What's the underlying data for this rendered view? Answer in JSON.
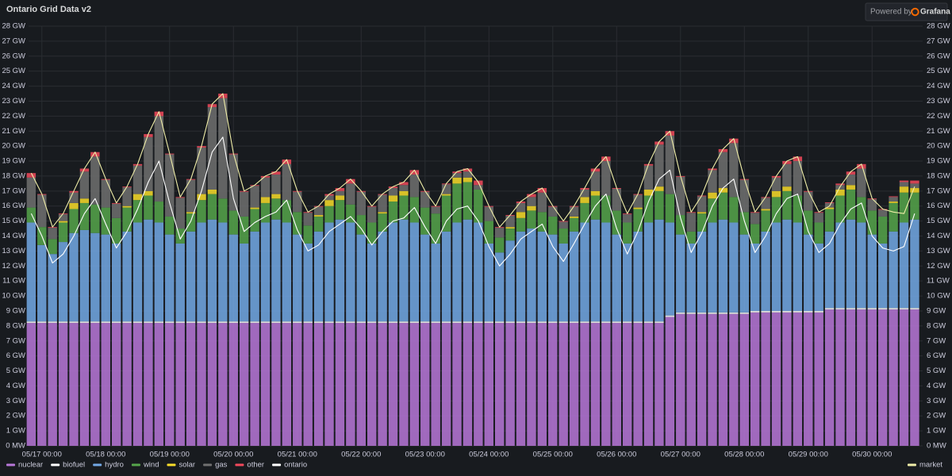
{
  "chart_data": {
    "type": "stacked_bar",
    "title": "Ontario Grid Data v2",
    "x": [
      -4,
      0,
      4,
      8,
      12,
      16,
      20,
      24,
      28,
      32,
      36,
      40,
      44,
      48,
      52,
      56,
      60,
      64,
      68,
      72,
      76,
      80,
      84,
      88,
      92,
      96,
      100,
      104,
      108,
      112,
      116,
      120,
      124,
      128,
      132,
      136,
      140,
      144,
      148,
      152,
      156,
      160,
      164,
      168,
      172,
      176,
      180,
      184,
      188,
      192,
      196,
      200,
      204,
      208,
      212,
      216,
      220,
      224,
      228,
      232,
      236,
      240,
      244,
      248,
      252,
      256,
      260,
      264,
      268,
      272,
      276,
      280,
      284,
      288,
      292,
      296,
      300,
      304,
      308,
      312,
      316,
      320,
      324,
      328
    ],
    "xlim": [
      -5,
      331
    ],
    "xticks": [
      {
        "value": 0,
        "label": "05/17 00:00"
      },
      {
        "value": 24,
        "label": "05/18 00:00"
      },
      {
        "value": 48,
        "label": "05/19 00:00"
      },
      {
        "value": 72,
        "label": "05/20 00:00"
      },
      {
        "value": 96,
        "label": "05/21 00:00"
      },
      {
        "value": 120,
        "label": "05/22 00:00"
      },
      {
        "value": 144,
        "label": "05/23 00:00"
      },
      {
        "value": 168,
        "label": "05/24 00:00"
      },
      {
        "value": 192,
        "label": "05/25 00:00"
      },
      {
        "value": 216,
        "label": "05/26 00:00"
      },
      {
        "value": 240,
        "label": "05/27 00:00"
      },
      {
        "value": 264,
        "label": "05/28 00:00"
      },
      {
        "value": 288,
        "label": "05/29 00:00"
      },
      {
        "value": 312,
        "label": "05/30 00:00"
      }
    ],
    "ylim": [
      0,
      28
    ],
    "yticks": [
      {
        "value": 0,
        "label": "0 MW"
      },
      {
        "value": 1,
        "label": "1 GW"
      },
      {
        "value": 2,
        "label": "2 GW"
      },
      {
        "value": 3,
        "label": "3 GW"
      },
      {
        "value": 4,
        "label": "4 GW"
      },
      {
        "value": 5,
        "label": "5 GW"
      },
      {
        "value": 6,
        "label": "6 GW"
      },
      {
        "value": 7,
        "label": "7 GW"
      },
      {
        "value": 8,
        "label": "8 GW"
      },
      {
        "value": 9,
        "label": "9 GW"
      },
      {
        "value": 10,
        "label": "10 GW"
      },
      {
        "value": 11,
        "label": "11 GW"
      },
      {
        "value": 12,
        "label": "12 GW"
      },
      {
        "value": 13,
        "label": "13 GW"
      },
      {
        "value": 14,
        "label": "14 GW"
      },
      {
        "value": 15,
        "label": "15 GW"
      },
      {
        "value": 16,
        "label": "16 GW"
      },
      {
        "value": 17,
        "label": "17 GW"
      },
      {
        "value": 18,
        "label": "18 GW"
      },
      {
        "value": 19,
        "label": "19 GW"
      },
      {
        "value": 20,
        "label": "20 GW"
      },
      {
        "value": 21,
        "label": "21 GW"
      },
      {
        "value": 22,
        "label": "22 GW"
      },
      {
        "value": 23,
        "label": "23 GW"
      },
      {
        "value": 24,
        "label": "24 GW"
      },
      {
        "value": 25,
        "label": "25 GW"
      },
      {
        "value": 26,
        "label": "26 GW"
      },
      {
        "value": 27,
        "label": "27 GW"
      },
      {
        "value": 28,
        "label": "28 GW"
      }
    ],
    "y2lim": [
      0,
      28
    ],
    "y2ticks": [
      {
        "value": 0,
        "label": "0 MW"
      },
      {
        "value": 1,
        "label": "1 GW"
      },
      {
        "value": 2,
        "label": "2 GW"
      },
      {
        "value": 3,
        "label": "3 GW"
      },
      {
        "value": 4,
        "label": "4 GW"
      },
      {
        "value": 5,
        "label": "5 GW"
      },
      {
        "value": 6,
        "label": "6 GW"
      },
      {
        "value": 7,
        "label": "7 GW"
      },
      {
        "value": 8,
        "label": "8 GW"
      },
      {
        "value": 9,
        "label": "9 GW"
      },
      {
        "value": 10,
        "label": "10 GW"
      },
      {
        "value": 11,
        "label": "11 GW"
      },
      {
        "value": 12,
        "label": "12 GW"
      },
      {
        "value": 13,
        "label": "13 GW"
      },
      {
        "value": 14,
        "label": "14 GW"
      },
      {
        "value": 15,
        "label": "15 GW"
      },
      {
        "value": 16,
        "label": "16 GW"
      },
      {
        "value": 17,
        "label": "17 GW"
      },
      {
        "value": 18,
        "label": "18 GW"
      },
      {
        "value": 19,
        "label": "19 GW"
      },
      {
        "value": 20,
        "label": "20 GW"
      },
      {
        "value": 21,
        "label": "21 GW"
      },
      {
        "value": 22,
        "label": "22 GW"
      },
      {
        "value": 23,
        "label": "23 GW"
      },
      {
        "value": 24,
        "label": "24 GW"
      },
      {
        "value": 25,
        "label": "25 GW"
      },
      {
        "value": 26,
        "label": "26 GW"
      },
      {
        "value": 27,
        "label": "27 GW"
      },
      {
        "value": 28,
        "label": "28 GW"
      }
    ],
    "grid": true,
    "legend": "bottom",
    "series": [
      {
        "name": "nuclear",
        "color": "#b877d9",
        "values": [
          8.2,
          8.2,
          8.2,
          8.2,
          8.2,
          8.2,
          8.2,
          8.2,
          8.2,
          8.2,
          8.2,
          8.2,
          8.2,
          8.2,
          8.2,
          8.2,
          8.2,
          8.2,
          8.2,
          8.2,
          8.2,
          8.2,
          8.2,
          8.2,
          8.2,
          8.2,
          8.2,
          8.2,
          8.2,
          8.2,
          8.2,
          8.2,
          8.2,
          8.2,
          8.2,
          8.2,
          8.2,
          8.2,
          8.2,
          8.2,
          8.2,
          8.2,
          8.2,
          8.2,
          8.2,
          8.2,
          8.2,
          8.2,
          8.2,
          8.2,
          8.2,
          8.2,
          8.2,
          8.2,
          8.2,
          8.2,
          8.2,
          8.2,
          8.2,
          8.2,
          8.6,
          8.8,
          8.8,
          8.8,
          8.8,
          8.8,
          8.8,
          8.8,
          8.9,
          8.9,
          8.9,
          8.9,
          8.9,
          8.9,
          8.9,
          9.1,
          9.1,
          9.1,
          9.1,
          9.1,
          9.1,
          9.1,
          9.1,
          9.1
        ]
      },
      {
        "name": "biofuel",
        "color": "#ffffff",
        "values": [
          0.1,
          0.1,
          0.1,
          0.1,
          0.1,
          0.1,
          0.1,
          0.1,
          0.1,
          0.1,
          0.1,
          0.1,
          0.1,
          0.1,
          0.1,
          0.1,
          0.1,
          0.1,
          0.1,
          0.1,
          0.1,
          0.1,
          0.1,
          0.1,
          0.1,
          0.1,
          0.1,
          0.1,
          0.1,
          0.1,
          0.1,
          0.1,
          0.1,
          0.1,
          0.1,
          0.1,
          0.1,
          0.1,
          0.1,
          0.1,
          0.1,
          0.1,
          0.1,
          0.1,
          0.1,
          0.1,
          0.1,
          0.1,
          0.1,
          0.1,
          0.1,
          0.1,
          0.1,
          0.1,
          0.1,
          0.1,
          0.1,
          0.1,
          0.1,
          0.1,
          0.1,
          0.1,
          0.1,
          0.1,
          0.1,
          0.1,
          0.1,
          0.1,
          0.1,
          0.1,
          0.1,
          0.1,
          0.1,
          0.1,
          0.1,
          0.1,
          0.1,
          0.1,
          0.1,
          0.1,
          0.1,
          0.1,
          0.1,
          0.1
        ]
      },
      {
        "name": "hydro",
        "color": "#73a9e6",
        "values": [
          6.6,
          5.1,
          4.5,
          5.3,
          5.9,
          6.1,
          5.9,
          5.8,
          5.2,
          6.0,
          6.6,
          6.8,
          6.6,
          5.8,
          5.2,
          6.0,
          6.6,
          6.8,
          6.6,
          5.8,
          5.2,
          6.0,
          6.6,
          6.8,
          6.6,
          5.8,
          5.2,
          6.0,
          6.6,
          6.8,
          6.6,
          5.8,
          5.2,
          6.0,
          6.6,
          6.8,
          6.6,
          5.8,
          5.2,
          6.0,
          6.6,
          6.8,
          6.6,
          5.2,
          4.6,
          5.4,
          6.0,
          6.2,
          6.0,
          5.8,
          5.2,
          6.0,
          6.6,
          6.8,
          6.6,
          5.8,
          5.2,
          6.0,
          6.6,
          6.8,
          6.2,
          5.2,
          4.6,
          5.4,
          6.0,
          6.2,
          6.0,
          5.2,
          4.5,
          5.3,
          5.9,
          6.1,
          5.9,
          5.1,
          4.5,
          5.1,
          5.7,
          5.9,
          5.7,
          4.9,
          4.3,
          5.1,
          5.7,
          5.9
        ]
      },
      {
        "name": "wind",
        "color": "#56a64b",
        "values": [
          1.0,
          1.2,
          1.0,
          1.3,
          1.6,
          1.8,
          1.9,
          1.8,
          1.7,
          1.6,
          1.5,
          1.6,
          1.4,
          1.2,
          1.0,
          1.2,
          1.5,
          1.7,
          1.6,
          1.6,
          1.8,
          1.5,
          1.3,
          1.4,
          1.5,
          1.5,
          1.2,
          1.0,
          1.1,
          1.3,
          1.2,
          1.3,
          1.4,
          1.2,
          1.4,
          1.6,
          1.7,
          1.8,
          2.0,
          2.4,
          2.6,
          2.5,
          2.2,
          1.5,
          1.0,
          0.8,
          0.9,
          1.2,
          1.3,
          1.2,
          1.0,
          0.9,
          1.3,
          1.6,
          1.8,
          1.6,
          1.4,
          1.5,
          1.8,
          1.9,
          1.9,
          1.3,
          0.8,
          1.2,
          1.6,
          1.8,
          1.7,
          1.5,
          1.3,
          1.4,
          1.7,
          1.9,
          1.8,
          1.6,
          1.4,
          1.5,
          1.8,
          2.0,
          1.7,
          1.6,
          1.8,
          1.9,
          2.0,
          1.8
        ]
      },
      {
        "name": "solar",
        "color": "#fade2a",
        "values": [
          0,
          0,
          0,
          0.1,
          0.4,
          0.3,
          0,
          0,
          0,
          0.1,
          0.4,
          0.3,
          0,
          0,
          0,
          0.1,
          0.4,
          0.3,
          0,
          0,
          0,
          0.1,
          0.4,
          0.3,
          0,
          0,
          0,
          0.1,
          0.4,
          0.3,
          0,
          0,
          0,
          0.1,
          0.4,
          0.3,
          0,
          0,
          0,
          0.1,
          0.4,
          0.3,
          0,
          0,
          0,
          0.1,
          0.4,
          0.3,
          0,
          0,
          0,
          0.1,
          0.4,
          0.3,
          0,
          0,
          0,
          0.1,
          0.4,
          0.3,
          0,
          0,
          0,
          0.1,
          0.4,
          0.3,
          0,
          0,
          0,
          0.1,
          0.4,
          0.3,
          0,
          0,
          0,
          0.1,
          0.4,
          0.3,
          0,
          0,
          0,
          0.1,
          0.4,
          0.3
        ]
      },
      {
        "name": "gas",
        "color": "#707070",
        "values": [
          2.0,
          2.15,
          0.75,
          0.45,
          0.7,
          1.8,
          3.2,
          1.85,
          0.95,
          1.25,
          1.9,
          3.6,
          5.7,
          4.15,
          2.05,
          2.15,
          3.1,
          5.5,
          6.7,
          3.75,
          1.65,
          1.45,
          1.3,
          1.3,
          2.4,
          1.35,
          0.85,
          0.55,
          0.3,
          0.3,
          1.4,
          1.55,
          1.05,
          1.15,
          0.5,
          0.4,
          1.5,
          1.05,
          0.45,
          0.65,
          0.3,
          0.4,
          0.3,
          0.95,
          0.65,
          0.75,
          0.6,
          0.6,
          1.3,
          0.65,
          0.45,
          0.65,
          0.5,
          1.3,
          2.3,
          1.45,
          0.55,
          0.85,
          1.6,
          2.8,
          3.9,
          2.55,
          1.25,
          1.05,
          1.5,
          2.4,
          3.6,
          2.15,
          0.75,
          0.75,
          0.9,
          1.5,
          2.3,
          1.25,
          0.65,
          0.3,
          0.3,
          0.7,
          1.9,
          0.75,
          0.45,
          0.3,
          0.3,
          0.3
        ]
      },
      {
        "name": "other",
        "color": "#f2495c",
        "values": [
          0.3,
          0.05,
          0.05,
          0.05,
          0.1,
          0.2,
          0.3,
          0.05,
          0.05,
          0.05,
          0.1,
          0.2,
          0.3,
          0.05,
          0.05,
          0.05,
          0.1,
          0.2,
          0.3,
          0.05,
          0.05,
          0.05,
          0.1,
          0.2,
          0.3,
          0.05,
          0.05,
          0.05,
          0.1,
          0.2,
          0.3,
          0.05,
          0.05,
          0.05,
          0.1,
          0.2,
          0.3,
          0.05,
          0.05,
          0.05,
          0.1,
          0.2,
          0.3,
          0.05,
          0.05,
          0.05,
          0.1,
          0.2,
          0.3,
          0.05,
          0.05,
          0.05,
          0.1,
          0.2,
          0.3,
          0.05,
          0.05,
          0.05,
          0.1,
          0.2,
          0.3,
          0.05,
          0.05,
          0.05,
          0.1,
          0.2,
          0.3,
          0.05,
          0.05,
          0.05,
          0.1,
          0.2,
          0.3,
          0.05,
          0.05,
          0.05,
          0.1,
          0.2,
          0.3,
          0.05,
          0.05,
          0.05,
          0.1,
          0.2
        ]
      }
    ],
    "lines": [
      {
        "name": "ontario",
        "color": "#ffffff",
        "values": [
          15.5,
          14.0,
          12.2,
          12.8,
          14.0,
          15.5,
          16.5,
          14.8,
          13.2,
          14.3,
          15.8,
          17.6,
          19.0,
          16.2,
          13.8,
          15.0,
          17.0,
          19.6,
          20.6,
          16.5,
          14.3,
          14.9,
          15.3,
          15.6,
          16.4,
          14.4,
          13.0,
          13.4,
          14.3,
          14.8,
          15.3,
          14.5,
          13.4,
          14.3,
          15.0,
          15.2,
          15.9,
          14.6,
          13.5,
          15.0,
          15.8,
          16.0,
          15.0,
          13.3,
          12.0,
          12.8,
          13.8,
          14.3,
          14.8,
          13.3,
          12.3,
          13.5,
          14.8,
          16.0,
          16.8,
          14.5,
          12.8,
          14.3,
          16.3,
          17.8,
          18.4,
          15.2,
          12.9,
          14.2,
          16.0,
          17.2,
          17.8,
          15.0,
          12.9,
          14.0,
          15.5,
          16.5,
          16.8,
          14.3,
          12.9,
          13.5,
          14.8,
          15.8,
          16.2,
          14.0,
          13.2,
          13.0,
          13.3,
          15.5
        ]
      },
      {
        "name": "market",
        "color": "#f0eea8",
        "axis": "y2",
        "values": [
          18.2,
          16.8,
          14.6,
          15.5,
          17.0,
          18.5,
          19.6,
          17.8,
          16.2,
          17.3,
          18.8,
          20.8,
          22.3,
          19.5,
          16.6,
          17.8,
          20.0,
          22.8,
          23.5,
          19.5,
          17.0,
          17.4,
          18.0,
          18.3,
          19.1,
          17.0,
          15.6,
          16.0,
          16.8,
          17.2,
          17.8,
          17.0,
          16.0,
          16.8,
          17.3,
          17.6,
          18.4,
          17.0,
          16.0,
          17.5,
          18.3,
          18.5,
          17.6,
          16.0,
          14.6,
          15.4,
          16.3,
          16.8,
          17.2,
          16.0,
          15.0,
          16.0,
          17.2,
          18.5,
          19.3,
          17.2,
          15.5,
          16.8,
          18.8,
          20.3,
          21.0,
          18.0,
          15.6,
          16.7,
          18.5,
          19.8,
          20.5,
          17.8,
          15.6,
          16.6,
          18.0,
          19.0,
          19.3,
          17.0,
          15.6,
          16.0,
          17.3,
          18.3,
          18.8,
          16.5,
          15.8,
          15.6,
          15.5,
          17.3
        ]
      }
    ]
  },
  "badge": {
    "prefix": "Powered by",
    "brand": "Grafana"
  }
}
